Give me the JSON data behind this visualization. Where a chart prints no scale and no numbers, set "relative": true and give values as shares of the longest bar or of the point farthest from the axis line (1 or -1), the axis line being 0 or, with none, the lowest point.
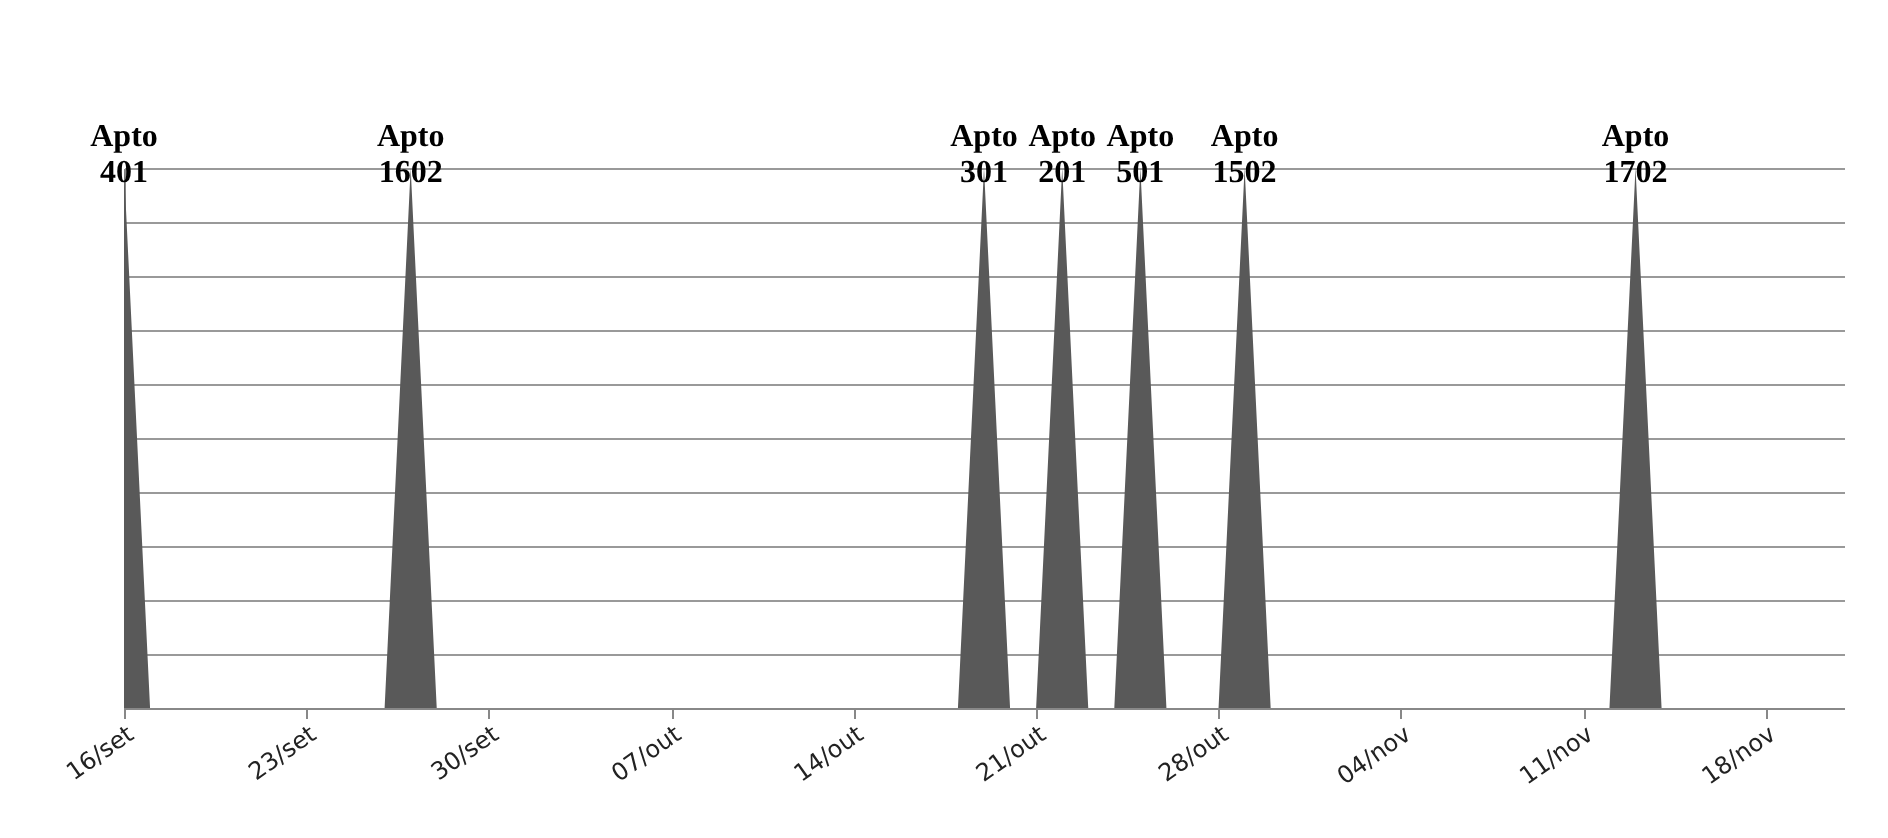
{
  "chart_data": {
    "type": "area",
    "relative": true,
    "color": "#595959",
    "grid": "y",
    "x": [
      "--09-16",
      "--09-17",
      "--09-26",
      "--09-27",
      "--09-28",
      "--10-18",
      "--10-19",
      "--10-20",
      "--10-21",
      "--10-22",
      "--10-23",
      "--10-24",
      "--10-25",
      "--10-26",
      "--10-28",
      "--10-29",
      "--10-30",
      "--11-12",
      "--11-13",
      "--11-14",
      "--11-21"
    ],
    "values": [
      1,
      0,
      0,
      1,
      0,
      0,
      1,
      0,
      0,
      1,
      0,
      0,
      1,
      0,
      0,
      1,
      0,
      0,
      1,
      0,
      0
    ],
    "xlim": [
      "--09-16",
      "--11-21"
    ],
    "xticks": [
      {
        "value": "--09-16",
        "label": "16/set"
      },
      {
        "value": "--09-23",
        "label": "23/set"
      },
      {
        "value": "--09-30",
        "label": "30/set"
      },
      {
        "value": "--10-07",
        "label": "07/out"
      },
      {
        "value": "--10-14",
        "label": "14/out"
      },
      {
        "value": "--10-21",
        "label": "21/out"
      },
      {
        "value": "--10-28",
        "label": "28/out"
      },
      {
        "value": "--11-04",
        "label": "04/nov"
      },
      {
        "value": "--11-11",
        "label": "11/nov"
      },
      {
        "value": "--11-18",
        "label": "18/nov"
      }
    ],
    "annotations": [
      {
        "text": "Apto 401",
        "x": "--09-16",
        "y": 1
      },
      {
        "text": "Apto 1602",
        "x": "--09-27",
        "y": 1
      },
      {
        "text": "Apto 301",
        "x": "--10-19",
        "y": 1
      },
      {
        "text": "Apto 201",
        "x": "--10-22",
        "y": 1
      },
      {
        "text": "Apto 501",
        "x": "--10-25",
        "y": 1
      },
      {
        "text": "Apto 1502",
        "x": "--10-29",
        "y": 1
      },
      {
        "text": "Apto 1702",
        "x": "--11-13",
        "y": 1
      }
    ]
  }
}
